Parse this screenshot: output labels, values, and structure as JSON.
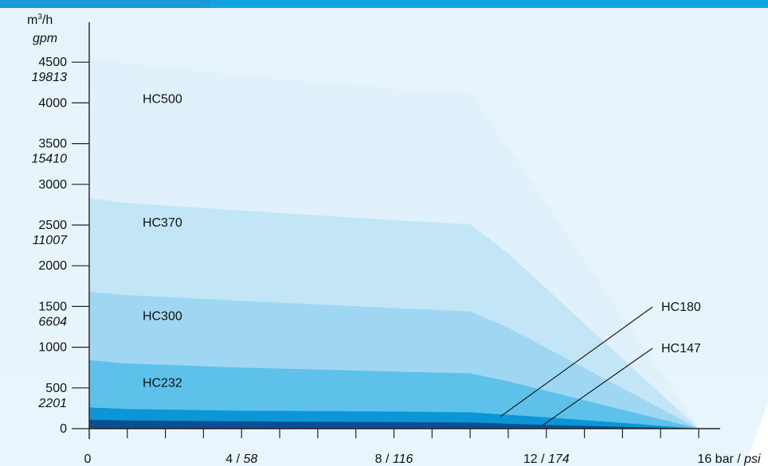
{
  "chart_data": {
    "type": "area",
    "title": "",
    "ylabel_unit_primary": "m³/h",
    "ylabel_unit_secondary": "gpm",
    "xlim": [
      0,
      16
    ],
    "ylim": [
      0,
      4800
    ],
    "x_ticks": [
      {
        "value": 0,
        "label": "0",
        "label_secondary": ""
      },
      {
        "value": 4,
        "label": "4 / ",
        "label_secondary": "58"
      },
      {
        "value": 8,
        "label": "8 / ",
        "label_secondary": "116"
      },
      {
        "value": 12,
        "label": "12 / ",
        "label_secondary": "174"
      },
      {
        "value": 16,
        "label": "16 bar / ",
        "label_secondary": "psi"
      }
    ],
    "y_ticks": [
      {
        "value": 0,
        "label": "0",
        "label_secondary": ""
      },
      {
        "value": 500,
        "label": "500",
        "label_secondary": "2201"
      },
      {
        "value": 1000,
        "label": "1000",
        "label_secondary": ""
      },
      {
        "value": 1500,
        "label": "1500",
        "label_secondary": "6604"
      },
      {
        "value": 2000,
        "label": "2000",
        "label_secondary": ""
      },
      {
        "value": 2500,
        "label": "2500",
        "label_secondary": "11007"
      },
      {
        "value": 3000,
        "label": "3000",
        "label_secondary": ""
      },
      {
        "value": 3500,
        "label": "3500",
        "label_secondary": "15410"
      },
      {
        "value": 4000,
        "label": "4000",
        "label_secondary": ""
      },
      {
        "value": 4500,
        "label": "4500",
        "label_secondary": "19813"
      }
    ],
    "series": [
      {
        "name": "HC500",
        "color": "#e0f1fb",
        "x": [
          0,
          1,
          4,
          8,
          10,
          11,
          16
        ],
        "y": [
          4560,
          4480,
          4330,
          4170,
          4110,
          3450,
          0
        ]
      },
      {
        "name": "HC370",
        "color": "#c3e6f7",
        "x": [
          0,
          1,
          4,
          8,
          10,
          11,
          16
        ],
        "y": [
          2830,
          2770,
          2680,
          2560,
          2510,
          2150,
          0
        ]
      },
      {
        "name": "HC300",
        "color": "#9fd7f2",
        "x": [
          0,
          1,
          4,
          8,
          10,
          11,
          16
        ],
        "y": [
          1680,
          1640,
          1570,
          1480,
          1440,
          1240,
          0
        ]
      },
      {
        "name": "HC232",
        "color": "#5ec1ea",
        "x": [
          0,
          1,
          4,
          8,
          10,
          11,
          16
        ],
        "y": [
          840,
          800,
          750,
          700,
          680,
          580,
          0
        ]
      },
      {
        "name": "HC180",
        "color": "#0b97d7",
        "x": [
          0,
          1,
          4,
          8,
          10,
          12,
          16
        ],
        "y": [
          260,
          240,
          220,
          210,
          200,
          140,
          0
        ]
      },
      {
        "name": "HC147",
        "color": "#0a4f93",
        "x": [
          0,
          1,
          4,
          8,
          10,
          12,
          16
        ],
        "y": [
          110,
          100,
          90,
          80,
          75,
          45,
          0
        ]
      }
    ],
    "series_labels": [
      "HC500",
      "HC370",
      "HC300",
      "HC232",
      "HC180",
      "HC147"
    ]
  }
}
